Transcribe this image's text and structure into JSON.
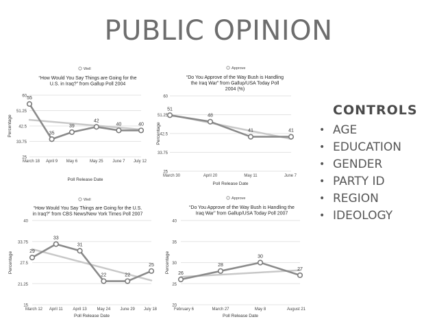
{
  "slide": {
    "title": "PUBLIC OPINION",
    "controls_heading": "CONTROLS",
    "controls": [
      "AGE",
      "EDUCATION",
      "GENDER",
      "PARTY ID",
      "REGION",
      "IDEOLOGY"
    ]
  },
  "chart_data": [
    {
      "type": "line",
      "title": "“How Would You Say Things are Going for the U.S. in Iraq?” from Gallup Poll 2004",
      "legend": "Well",
      "legend_position": "top",
      "xlabel": "Poll Release Date",
      "ylabel": "Percentage",
      "categories": [
        "March 18",
        "April 9",
        "May 6",
        "May 25",
        "June 7",
        "July 12"
      ],
      "x": [
        0,
        1,
        1.9,
        3,
        4,
        5
      ],
      "values": [
        55,
        35,
        39,
        42,
        40,
        40
      ],
      "data_labels": [
        "55",
        "35",
        "39",
        "42",
        "40",
        "40"
      ],
      "trend": [
        46,
        40.5
      ],
      "ylim": [
        25,
        60
      ],
      "yticks": [
        "25",
        "33.75",
        "42.5",
        "51.25",
        "60"
      ]
    },
    {
      "type": "line",
      "title": "“Do You Approve of the Way Bush is Handling the Iraq War” from Gallup/USA Today Poll 2004 (%)",
      "legend": "Approve",
      "legend_position": "top",
      "xlabel": "Poll Release Date",
      "ylabel": "Percentage",
      "categories": [
        "March 30",
        "April 20",
        "May 11",
        "June 7"
      ],
      "x": [
        0,
        1,
        2,
        3
      ],
      "values": [
        51,
        48,
        41,
        41
      ],
      "data_labels": [
        "51",
        "48",
        "41",
        "41"
      ],
      "trend": [
        51.2,
        40
      ],
      "ylim": [
        25,
        60
      ],
      "yticks": [
        "25",
        "33.75",
        "42.5",
        "51.25",
        "60"
      ]
    },
    {
      "type": "line",
      "title": "“How Would You Say Things are Going for the U.S. in Iraq?” from CBS News/New York Times Poll 2007",
      "legend": "Well",
      "legend_position": "top",
      "xlabel": "Poll Release Date",
      "ylabel": "Percentage",
      "categories": [
        "March 12",
        "April 11",
        "April 13",
        "May 24",
        "June 29",
        "July 18"
      ],
      "x": [
        0,
        1,
        2,
        3,
        4,
        5
      ],
      "values": [
        29,
        33,
        31,
        22,
        22,
        25
      ],
      "data_labels": [
        "29",
        "33",
        "31",
        "22",
        "22",
        "25"
      ],
      "trend": [
        31.5,
        22.2
      ],
      "ylim": [
        15,
        40
      ],
      "yticks": [
        "15",
        "21.25",
        "27.5",
        "33.75",
        "40"
      ]
    },
    {
      "type": "line",
      "title": "“Do You Approve of the Way Bush is Handling the Iraq War” from Gallup/USA Today Poll 2007",
      "legend": "Approve",
      "legend_position": "top",
      "xlabel": "Poll Release Date",
      "ylabel": "Percentage",
      "categories": [
        "February 6",
        "March 27",
        "May 8",
        "August 21"
      ],
      "x": [
        0,
        1,
        2,
        3
      ],
      "values": [
        26,
        28,
        30,
        27
      ],
      "data_labels": [
        "26",
        "28",
        "30",
        "27"
      ],
      "trend": [
        26.6,
        28.2
      ],
      "ylim": [
        20,
        40
      ],
      "yticks": [
        "20",
        "25",
        "30",
        "35",
        "40"
      ]
    }
  ]
}
